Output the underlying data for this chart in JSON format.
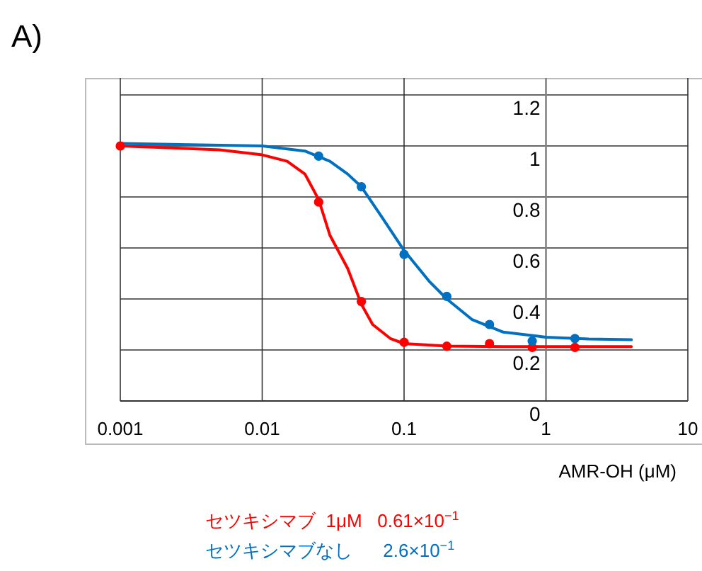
{
  "chart_data": {
    "type": "scatter",
    "title": "A)",
    "xlabel": "AMR-OH (μM)",
    "log": "x",
    "xlim": [
      0.001,
      10
    ],
    "xticks": [
      0.001,
      0.01,
      0.1,
      1,
      10
    ],
    "ylim": [
      0,
      1.2
    ],
    "yticks": [
      0,
      0.2,
      0.4,
      0.6,
      0.8,
      1,
      1.2
    ],
    "grid": true,
    "legend": "bottom",
    "marker": "circle",
    "series": [
      {
        "name": "セツキシマブ  1μM   0.61×10$^{−1}$",
        "color": "#ff0000",
        "x": [
          0.001,
          0.025,
          0.05,
          0.1,
          0.2,
          0.4,
          0.8,
          1.6
        ],
        "values": [
          1.0,
          0.78,
          0.39,
          0.23,
          0.215,
          0.225,
          0.21,
          0.21
        ]
      },
      {
        "name": "セツキシマブなし      2.6×10$^{−1}$",
        "color": "#0070c0",
        "x": [
          0.025,
          0.05,
          0.1,
          0.2,
          0.4,
          0.8,
          1.6
        ],
        "values": [
          0.96,
          0.84,
          0.575,
          0.41,
          0.3,
          0.235,
          0.245
        ]
      },
      {
        "color": "#ff0000",
        "type": "line",
        "marker": "none",
        "x": [
          0.001,
          0.005,
          0.01,
          0.015,
          0.02,
          0.025,
          0.03,
          0.04,
          0.05,
          0.06,
          0.08,
          0.1,
          0.2,
          0.5,
          1,
          4
        ],
        "values": [
          1.0,
          0.985,
          0.965,
          0.94,
          0.89,
          0.79,
          0.65,
          0.52,
          0.38,
          0.3,
          0.245,
          0.225,
          0.215,
          0.213,
          0.213,
          0.213
        ]
      },
      {
        "color": "#0070c0",
        "type": "line",
        "marker": "none",
        "x": [
          0.001,
          0.01,
          0.02,
          0.03,
          0.04,
          0.05,
          0.07,
          0.1,
          0.15,
          0.2,
          0.3,
          0.5,
          1,
          2,
          4
        ],
        "values": [
          1.01,
          1.0,
          0.98,
          0.94,
          0.89,
          0.84,
          0.72,
          0.59,
          0.47,
          0.4,
          0.32,
          0.27,
          0.25,
          0.243,
          0.24
        ]
      }
    ]
  }
}
